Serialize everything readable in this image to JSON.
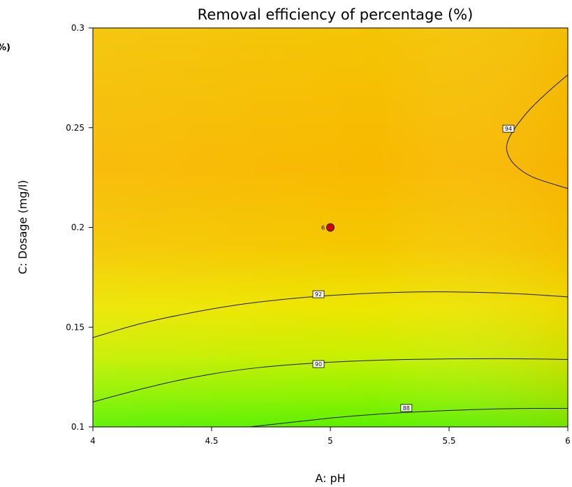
{
  "chart_data": {
    "type": "contour",
    "title": "Removal efficiency of percentage (%)",
    "xlabel": "A: pH",
    "ylabel": "C: Dosage (mg/l)",
    "xlim": [
      4,
      6
    ],
    "ylim": [
      0.1,
      0.3
    ],
    "x_ticks": [
      "4",
      "4.5",
      "5",
      "5.5",
      "6"
    ],
    "y_ticks": [
      "0.1",
      "0.15",
      "0.2",
      "0.25",
      "0.3"
    ],
    "color_scale": {
      "low": "#5cf000",
      "mid": "#f5dc00",
      "high": "#f8b400"
    },
    "contours": [
      {
        "level": "88",
        "label_pos": [
          5.32,
          0.1095
        ],
        "points": [
          [
            4.66,
            0.1
          ],
          [
            4.8,
            0.1018
          ],
          [
            5.0,
            0.1045
          ],
          [
            5.2,
            0.1065
          ],
          [
            5.4,
            0.1078
          ],
          [
            5.6,
            0.1087
          ],
          [
            5.8,
            0.1093
          ],
          [
            6.0,
            0.1093
          ]
        ]
      },
      {
        "level": "90",
        "label_pos": [
          4.95,
          0.1315
        ],
        "points": [
          [
            4.0,
            0.1125
          ],
          [
            4.2,
            0.119
          ],
          [
            4.4,
            0.1245
          ],
          [
            4.6,
            0.1285
          ],
          [
            4.8,
            0.131
          ],
          [
            5.0,
            0.1325
          ],
          [
            5.2,
            0.1335
          ],
          [
            5.4,
            0.134
          ],
          [
            5.6,
            0.1342
          ],
          [
            5.8,
            0.1342
          ],
          [
            6.0,
            0.1338
          ]
        ]
      },
      {
        "level": "92",
        "label_pos": [
          4.95,
          0.1665
        ],
        "points": [
          [
            4.0,
            0.1448
          ],
          [
            4.2,
            0.152
          ],
          [
            4.4,
            0.157
          ],
          [
            4.6,
            0.1612
          ],
          [
            4.8,
            0.164
          ],
          [
            5.0,
            0.166
          ],
          [
            5.2,
            0.1672
          ],
          [
            5.4,
            0.1678
          ],
          [
            5.6,
            0.1676
          ],
          [
            5.8,
            0.1668
          ],
          [
            6.0,
            0.1652
          ]
        ]
      },
      {
        "level": "94",
        "label_pos": [
          5.75,
          0.2495
        ],
        "points": [
          [
            6.0,
            0.2765
          ],
          [
            5.93,
            0.2695
          ],
          [
            5.84,
            0.2595
          ],
          [
            5.78,
            0.2505
          ],
          [
            5.745,
            0.2435
          ],
          [
            5.74,
            0.238
          ],
          [
            5.77,
            0.2315
          ],
          [
            5.84,
            0.2255
          ],
          [
            5.93,
            0.222
          ],
          [
            6.0,
            0.2195
          ]
        ]
      }
    ],
    "design_points": [
      {
        "x": 5.0,
        "y": 0.2,
        "label": "6",
        "color": "#d00000"
      }
    ],
    "edge_text": "%)"
  }
}
